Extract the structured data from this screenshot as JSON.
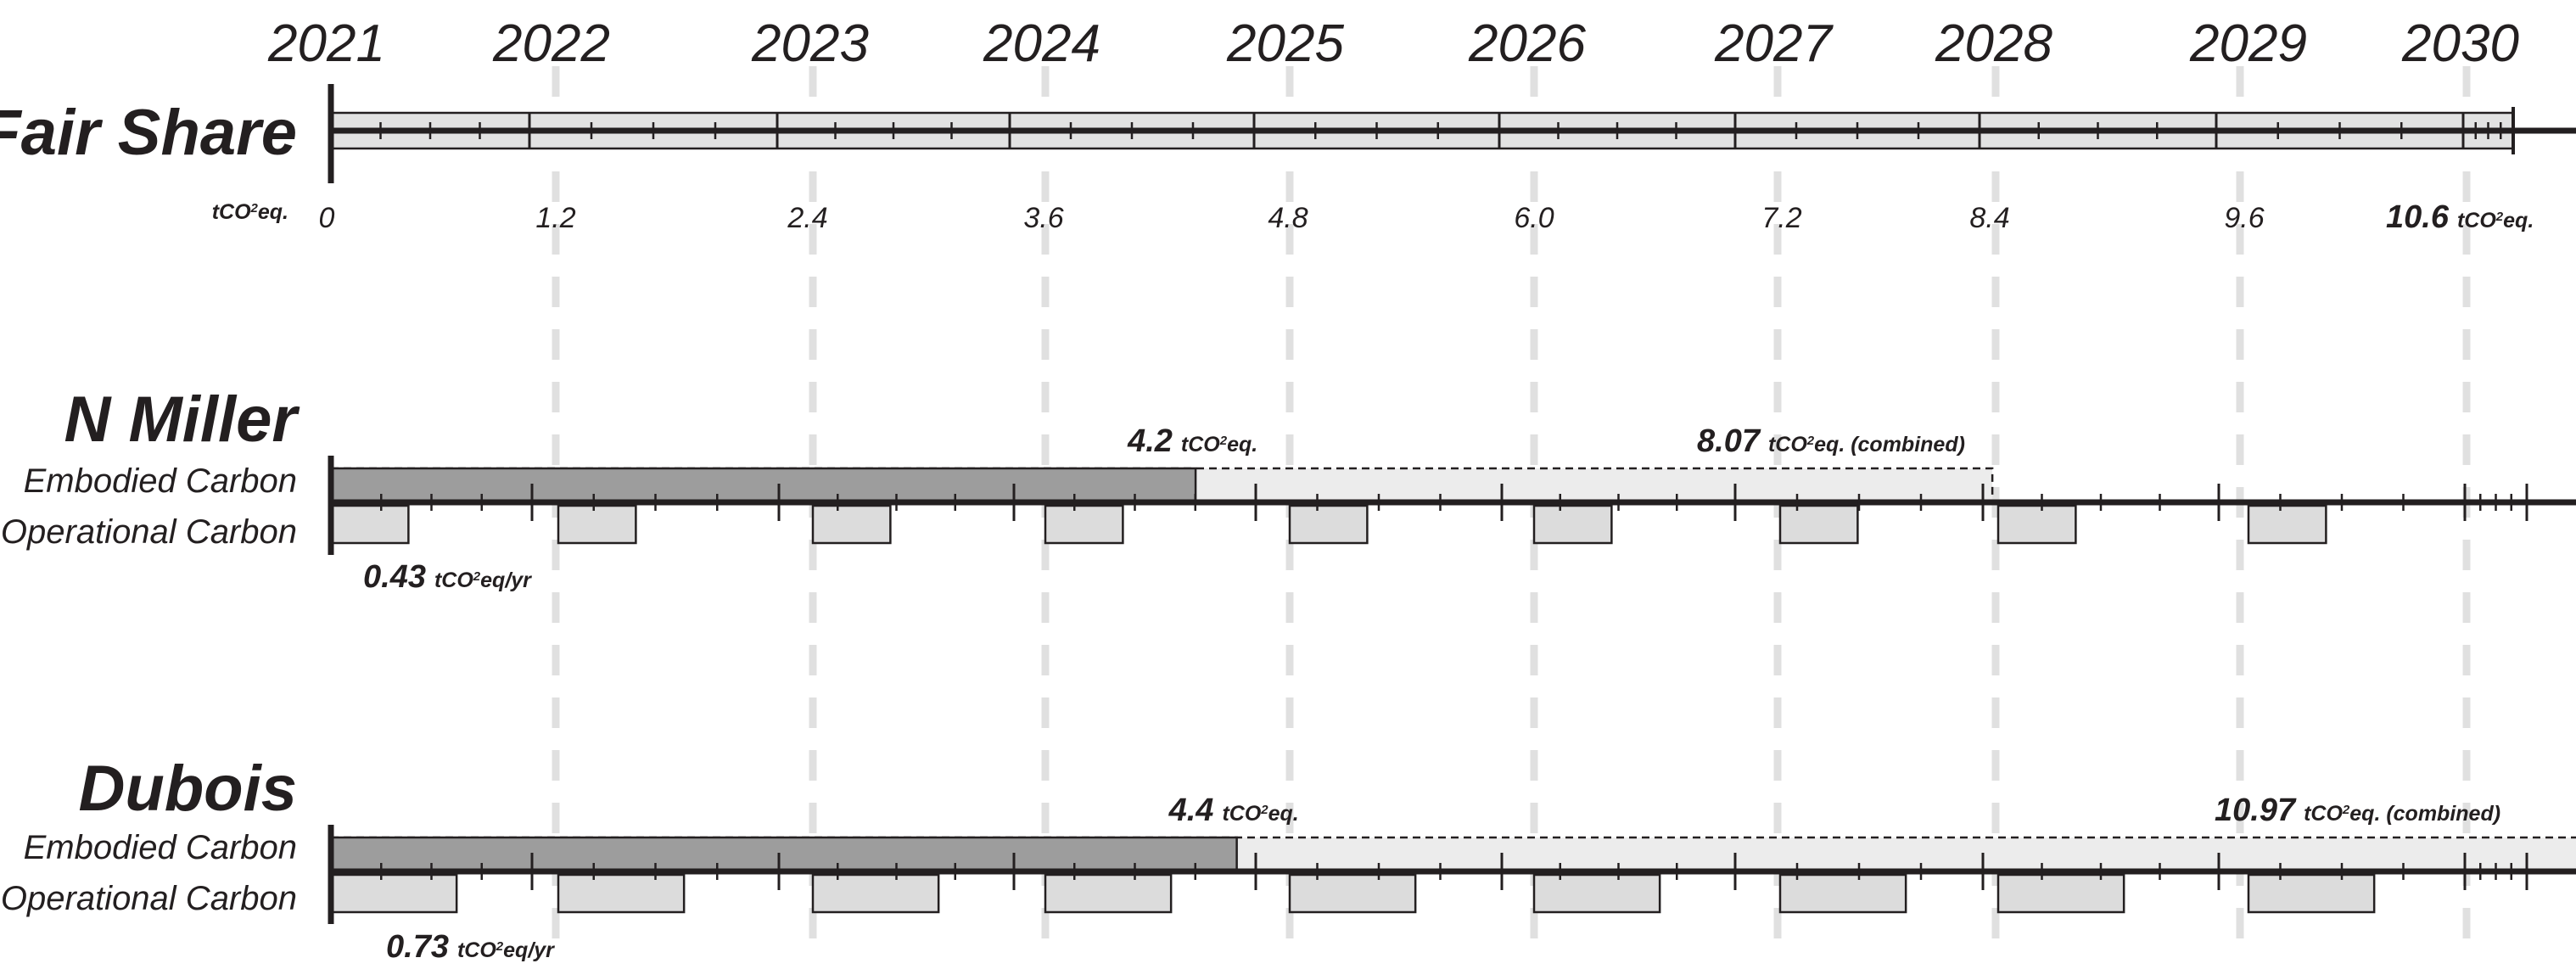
{
  "chart_data": {
    "type": "bar",
    "title": "",
    "years": [
      "2021",
      "2022",
      "2023",
      "2024",
      "2025",
      "2026",
      "2027",
      "2028",
      "2029",
      "2030"
    ],
    "fair_share": {
      "label": "Fair Share",
      "unit_left": "tCO²eq.",
      "ticks": [
        "0",
        "1.2",
        "2.4",
        "3.6",
        "4.8",
        "6.0",
        "7.2",
        "8.4",
        "9.6"
      ],
      "total_value": "10.6",
      "total_unit": "tCO²eq.",
      "total": 10.6
    },
    "buildings": [
      {
        "name": "N Miller",
        "embodied_label": "Embodied Carbon",
        "operational_label": "Operational Carbon",
        "embodied_value": "4.2",
        "embodied_unit": "tCO²eq.",
        "combined_value": "8.07",
        "combined_unit": "tCO²eq. (combined)",
        "operational_value": "0.43",
        "operational_unit": "tCO²eq/yr",
        "embodied": 4.2,
        "combined": 8.07,
        "operational_per_year": 0.43,
        "operational_years": 9
      },
      {
        "name": "Dubois",
        "embodied_label": "Embodied Carbon",
        "operational_label": "Operational Carbon",
        "embodied_value": "4.4",
        "embodied_unit": "tCO²eq.",
        "combined_value": "10.97",
        "combined_unit": "tCO²eq. (combined)",
        "operational_value": "0.73",
        "operational_unit": "tCO²eq/yr",
        "embodied": 4.4,
        "combined": 10.97,
        "operational_per_year": 0.73,
        "operational_years": 9
      }
    ],
    "colors": {
      "ink": "#231f20",
      "embodied": "#9d9d9d",
      "combined": "#ececec",
      "operational": "#dcdcdc",
      "fair_share": "#e2e2e2",
      "year_guides": "#e0e0e0"
    }
  }
}
